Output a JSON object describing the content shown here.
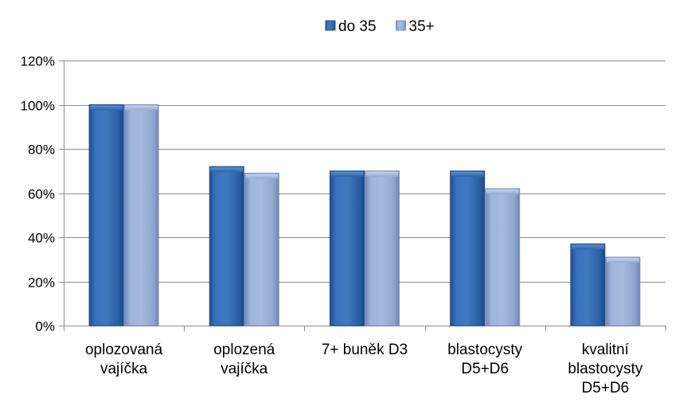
{
  "chart_data": {
    "type": "bar",
    "categories": [
      [
        "oplozovaná",
        "vajíčka"
      ],
      [
        "oplozená",
        "vajíčka"
      ],
      [
        "7+ buněk D3"
      ],
      [
        "blastocysty",
        "D5+D6"
      ],
      [
        "kvalitní",
        "blastocysty",
        "D5+D6"
      ]
    ],
    "series": [
      {
        "name": "do 35",
        "values": [
          100,
          72,
          70,
          70,
          37
        ],
        "color": "#2f63a8"
      },
      {
        "name": "35+",
        "values": [
          100,
          69,
          70,
          62,
          31
        ],
        "color": "#8ea6cf"
      }
    ],
    "yticks": [
      "0%",
      "20%",
      "40%",
      "60%",
      "80%",
      "100%",
      "120%"
    ],
    "ylim": [
      0,
      120
    ],
    "ystep": 20,
    "grid": true,
    "legend": "top-center",
    "title": "",
    "xlabel": "",
    "ylabel": ""
  }
}
